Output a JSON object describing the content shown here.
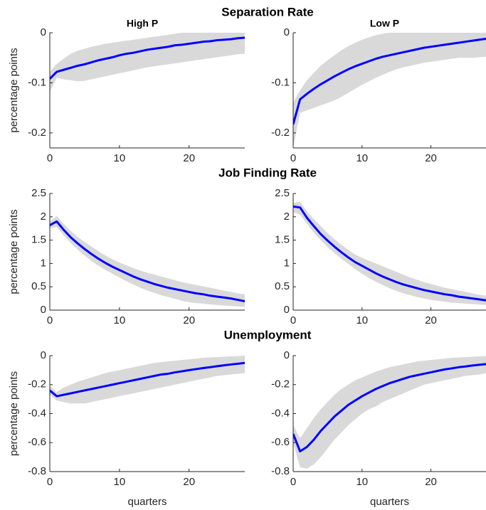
{
  "chart_data": [
    {
      "type": "line",
      "title": "Separation Rate",
      "subtitle": "High P",
      "ylabel": "percentage points",
      "x": [
        0,
        1,
        2,
        3,
        4,
        5,
        6,
        7,
        8,
        9,
        10,
        11,
        12,
        13,
        14,
        15,
        16,
        17,
        18,
        19,
        20,
        21,
        22,
        23,
        24,
        25,
        26,
        27,
        28
      ],
      "values": [
        -0.092,
        -0.078,
        -0.074,
        -0.07,
        -0.066,
        -0.063,
        -0.059,
        -0.055,
        -0.052,
        -0.049,
        -0.045,
        -0.042,
        -0.04,
        -0.037,
        -0.034,
        -0.032,
        -0.03,
        -0.028,
        -0.025,
        -0.024,
        -0.022,
        -0.02,
        -0.018,
        -0.017,
        -0.015,
        -0.014,
        -0.013,
        -0.011,
        -0.01
      ],
      "lower": [
        -0.118,
        -0.09,
        -0.093,
        -0.095,
        -0.097,
        -0.096,
        -0.093,
        -0.09,
        -0.087,
        -0.084,
        -0.081,
        -0.078,
        -0.075,
        -0.072,
        -0.069,
        -0.067,
        -0.065,
        -0.063,
        -0.061,
        -0.059,
        -0.057,
        -0.055,
        -0.053,
        -0.051,
        -0.049,
        -0.047,
        -0.045,
        -0.043,
        -0.042
      ],
      "upper": [
        -0.078,
        -0.062,
        -0.052,
        -0.042,
        -0.036,
        -0.032,
        -0.028,
        -0.025,
        -0.022,
        -0.02,
        -0.018,
        -0.016,
        -0.014,
        -0.012,
        -0.01,
        -0.008,
        -0.006,
        -0.004,
        -0.002,
        0,
        0,
        0,
        0,
        0,
        0,
        0,
        0,
        0,
        0
      ],
      "color": "#0000ff",
      "band_color": "#d9d9d9",
      "xlim": [
        0,
        28
      ],
      "xticks": [
        0,
        10,
        20
      ],
      "ylim": [
        -0.23,
        0
      ],
      "yticks": [
        -0.2,
        -0.1,
        0
      ]
    },
    {
      "type": "line",
      "subtitle": "Low P",
      "x": [
        0,
        1,
        2,
        3,
        4,
        5,
        6,
        7,
        8,
        9,
        10,
        11,
        12,
        13,
        14,
        15,
        16,
        17,
        18,
        19,
        20,
        21,
        22,
        23,
        24,
        25,
        26,
        27,
        28
      ],
      "values": [
        -0.183,
        -0.133,
        -0.122,
        -0.112,
        -0.103,
        -0.095,
        -0.087,
        -0.08,
        -0.073,
        -0.067,
        -0.062,
        -0.057,
        -0.052,
        -0.048,
        -0.045,
        -0.042,
        -0.039,
        -0.036,
        -0.033,
        -0.03,
        -0.028,
        -0.026,
        -0.024,
        -0.022,
        -0.02,
        -0.018,
        -0.016,
        -0.014,
        -0.012
      ],
      "lower": [
        -0.23,
        -0.16,
        -0.155,
        -0.15,
        -0.145,
        -0.14,
        -0.135,
        -0.128,
        -0.12,
        -0.112,
        -0.104,
        -0.097,
        -0.09,
        -0.084,
        -0.078,
        -0.073,
        -0.069,
        -0.066,
        -0.063,
        -0.06,
        -0.058,
        -0.056,
        -0.054,
        -0.052,
        -0.05,
        -0.05,
        -0.05,
        -0.049,
        -0.048
      ],
      "upper": [
        -0.14,
        -0.115,
        -0.095,
        -0.08,
        -0.066,
        -0.055,
        -0.045,
        -0.035,
        -0.027,
        -0.02,
        -0.014,
        -0.009,
        -0.005,
        -0.002,
        0,
        0,
        0,
        0,
        0,
        0,
        0,
        0,
        0,
        0,
        0,
        0,
        0,
        0,
        0
      ],
      "color": "#0000ff",
      "band_color": "#d9d9d9",
      "xlim": [
        0,
        28
      ],
      "xticks": [
        0,
        10,
        20
      ],
      "ylim": [
        -0.23,
        0
      ],
      "yticks": [
        -0.2,
        -0.1,
        0
      ]
    },
    {
      "type": "line",
      "title": "Job Finding Rate",
      "ylabel": "percentage points",
      "x": [
        0,
        1,
        2,
        3,
        4,
        5,
        6,
        7,
        8,
        9,
        10,
        11,
        12,
        13,
        14,
        15,
        16,
        17,
        18,
        19,
        20,
        21,
        22,
        23,
        24,
        25,
        26,
        27,
        28
      ],
      "values": [
        1.82,
        1.9,
        1.72,
        1.56,
        1.43,
        1.31,
        1.2,
        1.1,
        1.01,
        0.93,
        0.86,
        0.79,
        0.72,
        0.66,
        0.61,
        0.56,
        0.52,
        0.48,
        0.45,
        0.42,
        0.39,
        0.36,
        0.34,
        0.31,
        0.29,
        0.27,
        0.25,
        0.22,
        0.19
      ],
      "lower": [
        1.75,
        1.78,
        1.6,
        1.44,
        1.3,
        1.17,
        1.05,
        0.95,
        0.86,
        0.78,
        0.7,
        0.62,
        0.55,
        0.48,
        0.42,
        0.37,
        0.32,
        0.28,
        0.24,
        0.2,
        0.17,
        0.15,
        0.14,
        0.12,
        0.11,
        0.1,
        0.09,
        0.08,
        0.07
      ],
      "upper": [
        1.9,
        2.02,
        1.85,
        1.7,
        1.57,
        1.46,
        1.36,
        1.26,
        1.17,
        1.09,
        1.02,
        0.96,
        0.9,
        0.85,
        0.8,
        0.76,
        0.72,
        0.68,
        0.64,
        0.6,
        0.57,
        0.54,
        0.51,
        0.48,
        0.45,
        0.42,
        0.39,
        0.36,
        0.34
      ],
      "color": "#0000ff",
      "band_color": "#d9d9d9",
      "xlim": [
        0,
        28
      ],
      "xticks": [
        0,
        10,
        20
      ],
      "ylim": [
        0,
        2.5
      ],
      "yticks": [
        0,
        0.5,
        1,
        1.5,
        2,
        2.5
      ]
    },
    {
      "type": "line",
      "x": [
        0,
        1,
        2,
        3,
        4,
        5,
        6,
        7,
        8,
        9,
        10,
        11,
        12,
        13,
        14,
        15,
        16,
        17,
        18,
        19,
        20,
        21,
        22,
        23,
        24,
        25,
        26,
        27,
        28
      ],
      "values": [
        2.22,
        2.2,
        1.98,
        1.8,
        1.63,
        1.49,
        1.36,
        1.24,
        1.13,
        1.03,
        0.95,
        0.87,
        0.79,
        0.72,
        0.66,
        0.6,
        0.55,
        0.51,
        0.47,
        0.43,
        0.4,
        0.37,
        0.34,
        0.32,
        0.29,
        0.27,
        0.25,
        0.23,
        0.21
      ],
      "lower": [
        2.1,
        2.05,
        1.85,
        1.66,
        1.5,
        1.35,
        1.22,
        1.1,
        0.99,
        0.88,
        0.78,
        0.69,
        0.61,
        0.54,
        0.47,
        0.41,
        0.36,
        0.32,
        0.28,
        0.25,
        0.22,
        0.2,
        0.18,
        0.16,
        0.15,
        0.14,
        0.13,
        0.12,
        0.11
      ],
      "upper": [
        2.3,
        2.32,
        2.12,
        1.95,
        1.8,
        1.65,
        1.52,
        1.4,
        1.29,
        1.19,
        1.12,
        1.06,
        1,
        0.94,
        0.88,
        0.82,
        0.76,
        0.7,
        0.65,
        0.6,
        0.56,
        0.52,
        0.48,
        0.45,
        0.42,
        0.39,
        0.36,
        0.33,
        0.31
      ],
      "color": "#0000ff",
      "band_color": "#d9d9d9",
      "xlim": [
        0,
        28
      ],
      "xticks": [
        0,
        10,
        20
      ],
      "ylim": [
        0,
        2.5
      ],
      "yticks": [
        0,
        0.5,
        1,
        1.5,
        2,
        2.5
      ]
    },
    {
      "type": "line",
      "title": "Unemployment",
      "ylabel": "percentage points",
      "xlabel": "quarters",
      "x": [
        0,
        1,
        2,
        3,
        4,
        5,
        6,
        7,
        8,
        9,
        10,
        11,
        12,
        13,
        14,
        15,
        16,
        17,
        18,
        19,
        20,
        21,
        22,
        23,
        24,
        25,
        26,
        27,
        28
      ],
      "values": [
        -0.24,
        -0.28,
        -0.27,
        -0.26,
        -0.25,
        -0.24,
        -0.23,
        -0.22,
        -0.21,
        -0.2,
        -0.19,
        -0.18,
        -0.17,
        -0.16,
        -0.15,
        -0.14,
        -0.13,
        -0.125,
        -0.115,
        -0.108,
        -0.1,
        -0.093,
        -0.086,
        -0.08,
        -0.073,
        -0.067,
        -0.061,
        -0.056,
        -0.05
      ],
      "lower": [
        -0.27,
        -0.31,
        -0.32,
        -0.33,
        -0.33,
        -0.33,
        -0.32,
        -0.31,
        -0.3,
        -0.29,
        -0.28,
        -0.27,
        -0.26,
        -0.25,
        -0.24,
        -0.23,
        -0.22,
        -0.21,
        -0.2,
        -0.19,
        -0.18,
        -0.17,
        -0.16,
        -0.15,
        -0.14,
        -0.135,
        -0.13,
        -0.125,
        -0.12
      ],
      "upper": [
        -0.21,
        -0.25,
        -0.22,
        -0.2,
        -0.18,
        -0.165,
        -0.15,
        -0.135,
        -0.12,
        -0.11,
        -0.1,
        -0.09,
        -0.08,
        -0.07,
        -0.06,
        -0.05,
        -0.045,
        -0.04,
        -0.035,
        -0.03,
        -0.025,
        -0.02,
        -0.015,
        -0.012,
        -0.01,
        -0.008,
        -0.005,
        -0.003,
        0
      ],
      "color": "#0000ff",
      "band_color": "#d9d9d9",
      "xlim": [
        0,
        28
      ],
      "xticks": [
        0,
        10,
        20
      ],
      "ylim": [
        -0.8,
        0
      ],
      "yticks": [
        -0.8,
        -0.6,
        -0.4,
        -0.2,
        0
      ]
    },
    {
      "type": "line",
      "xlabel": "quarters",
      "x": [
        0,
        1,
        2,
        3,
        4,
        5,
        6,
        7,
        8,
        9,
        10,
        11,
        12,
        13,
        14,
        15,
        16,
        17,
        18,
        19,
        20,
        21,
        22,
        23,
        24,
        25,
        26,
        27,
        28
      ],
      "values": [
        -0.54,
        -0.66,
        -0.63,
        -0.58,
        -0.52,
        -0.47,
        -0.42,
        -0.38,
        -0.34,
        -0.31,
        -0.28,
        -0.255,
        -0.23,
        -0.21,
        -0.19,
        -0.175,
        -0.16,
        -0.145,
        -0.135,
        -0.125,
        -0.115,
        -0.105,
        -0.095,
        -0.088,
        -0.08,
        -0.075,
        -0.068,
        -0.063,
        -0.058
      ],
      "lower": [
        -0.6,
        -0.77,
        -0.78,
        -0.75,
        -0.7,
        -0.64,
        -0.58,
        -0.53,
        -0.48,
        -0.44,
        -0.4,
        -0.37,
        -0.35,
        -0.32,
        -0.3,
        -0.28,
        -0.26,
        -0.24,
        -0.22,
        -0.2,
        -0.19,
        -0.18,
        -0.17,
        -0.16,
        -0.15,
        -0.14,
        -0.135,
        -0.13,
        -0.12
      ],
      "upper": [
        -0.48,
        -0.57,
        -0.5,
        -0.43,
        -0.37,
        -0.32,
        -0.27,
        -0.23,
        -0.2,
        -0.17,
        -0.15,
        -0.13,
        -0.11,
        -0.095,
        -0.08,
        -0.07,
        -0.06,
        -0.05,
        -0.04,
        -0.035,
        -0.03,
        -0.025,
        -0.02,
        -0.015,
        -0.012,
        -0.01,
        -0.008,
        -0.005,
        -0.003
      ],
      "color": "#0000ff",
      "band_color": "#d9d9d9",
      "xlim": [
        0,
        28
      ],
      "xticks": [
        0,
        10,
        20
      ],
      "ylim": [
        -0.8,
        0
      ],
      "yticks": [
        -0.8,
        -0.6,
        -0.4,
        -0.2,
        0
      ]
    }
  ]
}
